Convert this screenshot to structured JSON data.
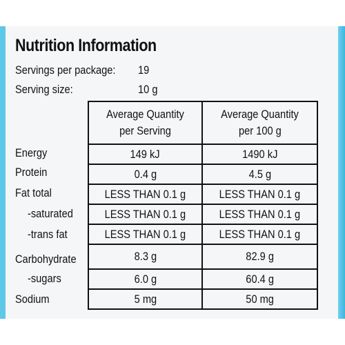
{
  "panel": {
    "title": "Nutrition Information",
    "servings_label": "Servings per package:",
    "servings_value": "19",
    "serving_size_label": "Serving size:",
    "serving_size_value": "10 g"
  },
  "table": {
    "headers": [
      "Average Quantity\nper Serving",
      "Average Quantity\nper 100 g"
    ],
    "header_lines": [
      [
        "Average Quantity",
        "per Serving"
      ],
      [
        "Average Quantity",
        "per 100 g"
      ]
    ],
    "rows": [
      {
        "label": "Energy",
        "per_serving": "149 kJ",
        "per_100g": "1490 kJ"
      },
      {
        "label": "Protein",
        "per_serving": "0.4 g",
        "per_100g": "4.5 g"
      },
      {
        "label": "Fat total",
        "per_serving": "LESS THAN 0.1 g",
        "per_100g": "LESS THAN 0.1 g"
      },
      {
        "label": "-saturated",
        "per_serving": "LESS THAN 0.1 g",
        "per_100g": "LESS THAN 0.1 g"
      },
      {
        "label": "-trans fat",
        "per_serving": "LESS THAN 0.1 g",
        "per_100g": "LESS THAN 0.1 g"
      },
      {
        "label": "Carbohydrate",
        "per_serving": "8.3 g",
        "per_100g": "82.9 g"
      },
      {
        "label": "-sugars",
        "per_serving": "6.0 g",
        "per_100g": "60.4 g"
      },
      {
        "label": "Sodium",
        "per_serving": "5 mg",
        "per_100g": "50 mg"
      }
    ]
  },
  "colors": {
    "package_blue": "#4fc0e6",
    "panel_background": "#f5f6f8",
    "text": "#111111"
  }
}
